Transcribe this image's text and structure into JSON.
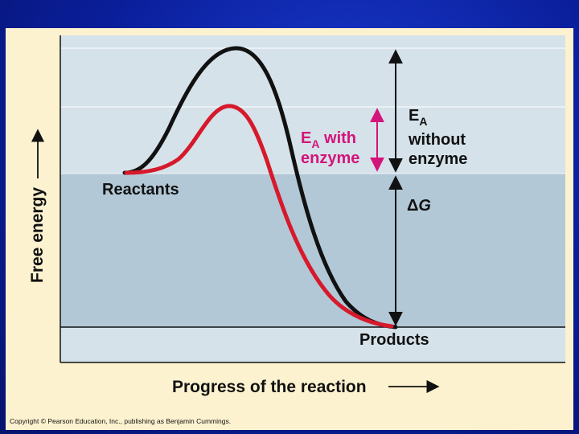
{
  "diagram": {
    "y_axis_label": "Free energy",
    "x_axis_label": "Progress of the reaction",
    "reactants_label": "Reactants",
    "products_label": "Products",
    "ea_with_enzyme_main": "E",
    "ea_with_enzyme_sub": "A",
    "ea_with_enzyme_rest": " with",
    "ea_with_enzyme_line2": "enzyme",
    "ea_without_main": "E",
    "ea_without_sub": "A",
    "ea_without_line2": "without",
    "ea_without_line3": "enzyme",
    "delta_symbol": "Δ",
    "delta_letter": "G",
    "copyright": "Copyright © Pearson Education, Inc., publishing as Benjamin Cummings."
  },
  "colors": {
    "uncatalyzed_curve": "#111111",
    "catalyzed_curve": "#d6192b",
    "enzyme_arrow": "#d4147a",
    "upper_band": "#d5e2ea",
    "lower_band": "#b3c8d6",
    "panel_background": "#fcf2cf"
  }
}
